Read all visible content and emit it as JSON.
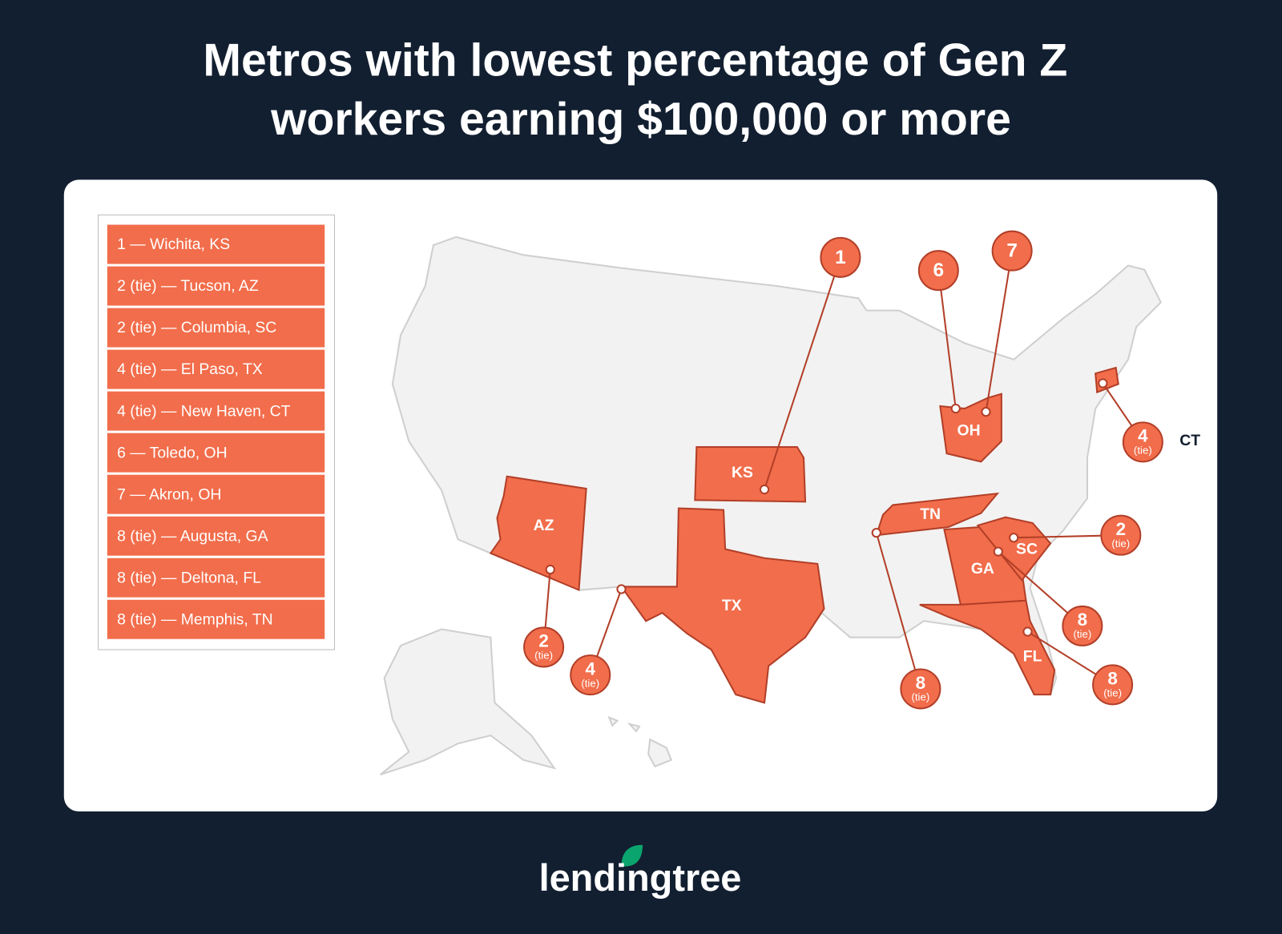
{
  "title": [
    "Metros with lowest percentage of Gen Z",
    "workers earning $100,000 or more"
  ],
  "legend": [
    "1 — Wichita, KS",
    "2 (tie) — Tucson, AZ",
    "2 (tie) — Columbia, SC",
    "4 (tie) — El Paso, TX",
    "4 (tie) — New Haven, CT",
    "6 — Toledo, OH",
    "7 — Akron, OH",
    "8 (tie) — Augusta, GA",
    "8 (tie) — Deltona, FL",
    "8 (tie) — Memphis, TN"
  ],
  "states": [
    "KS",
    "AZ",
    "TX",
    "TN",
    "OH",
    "GA",
    "SC",
    "FL"
  ],
  "markers": [
    {
      "label": "1"
    },
    {
      "label": "6"
    },
    {
      "label": "7"
    },
    {
      "label": "4",
      "note": "(tie)"
    },
    {
      "label": "2",
      "note": "(tie)"
    },
    {
      "label": "8",
      "note": "(tie)"
    },
    {
      "label": "8",
      "note": "(tie)"
    },
    {
      "label": "8",
      "note": "(tie)"
    },
    {
      "label": "4",
      "note": "(tie)"
    },
    {
      "label": "2",
      "note": "(tie)"
    }
  ],
  "outside_label": "CT",
  "logo": "lendingtree"
}
